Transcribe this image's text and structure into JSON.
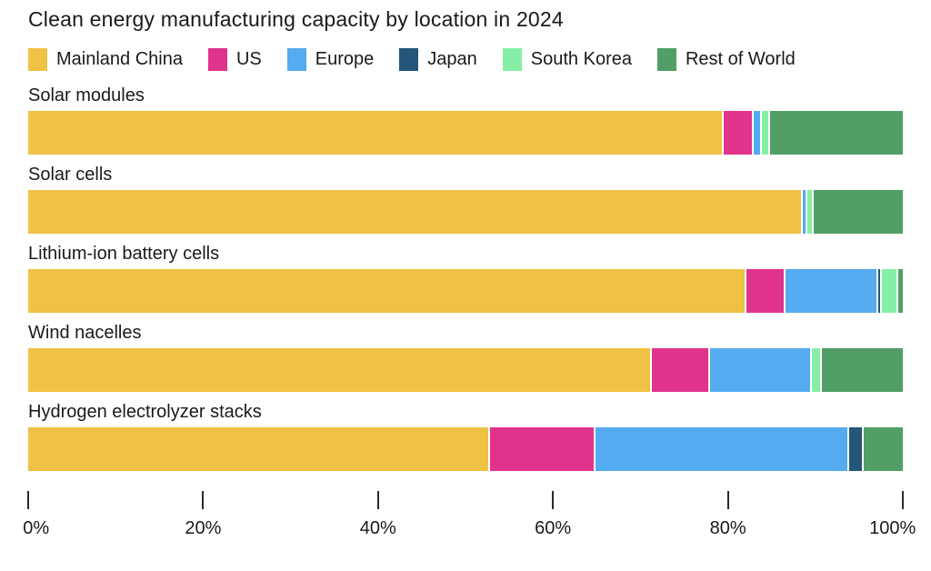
{
  "chart_data": {
    "type": "bar",
    "orientation": "horizontal",
    "stacked": true,
    "unit": "%",
    "title": "Clean energy manufacturing capacity by location in 2024",
    "legend_position": "top",
    "grid": false,
    "xlim": [
      0,
      100
    ],
    "x_ticks": [
      "0%",
      "20%",
      "40%",
      "60%",
      "80%",
      "100%"
    ],
    "categories": [
      "Solar modules",
      "Solar cells",
      "Lithium-ion battery cells",
      "Wind nacelles",
      "Hydrogen electrolyzer stacks"
    ],
    "series": [
      {
        "name": "Mainland China",
        "color": "#EFC144",
        "values": [
          79.4,
          88.5,
          82.0,
          71.2,
          52.7
        ]
      },
      {
        "name": "US",
        "color": "#E0338C",
        "values": [
          3.4,
          0,
          4.5,
          6.7,
          12.1
        ]
      },
      {
        "name": "Europe",
        "color": "#55ABF0",
        "values": [
          1.0,
          0.5,
          10.6,
          11.6,
          29.0
        ]
      },
      {
        "name": "Japan",
        "color": "#25567A",
        "values": [
          0,
          0,
          0.4,
          0,
          1.6
        ]
      },
      {
        "name": "South Korea",
        "color": "#86EFA6",
        "values": [
          0.9,
          0.7,
          1.9,
          1.1,
          0
        ]
      },
      {
        "name": "Rest of World",
        "color": "#519F66",
        "values": [
          15.3,
          10.3,
          0.6,
          9.4,
          4.6
        ]
      }
    ],
    "colors": {
      "background": "#ffffff",
      "text": "#1a1a1a",
      "tick": "#2a2a2a"
    }
  }
}
